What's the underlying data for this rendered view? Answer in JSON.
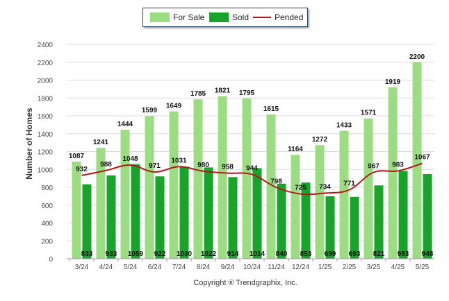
{
  "legend": {
    "for_sale": "For Sale",
    "sold": "Sold",
    "pended": "Pended"
  },
  "ylabel": "Number of Homes",
  "copyright": "Copyright ® Trendgraphix, Inc.",
  "colors": {
    "for_sale": "#9cdd84",
    "sold": "#18a32a",
    "pended": "#b01818",
    "grid": "#dddddd"
  },
  "chart_data": {
    "type": "bar",
    "categories": [
      "3/24",
      "4/24",
      "5/24",
      "6/24",
      "7/24",
      "8/24",
      "9/24",
      "10/24",
      "11/24",
      "12/24",
      "1/25",
      "2/25",
      "3/25",
      "4/25",
      "5/25"
    ],
    "series": [
      {
        "name": "For Sale",
        "type": "bar",
        "values": [
          1087,
          1241,
          1444,
          1599,
          1649,
          1785,
          1821,
          1795,
          1615,
          1164,
          1272,
          1433,
          1571,
          1919,
          2200
        ]
      },
      {
        "name": "Sold",
        "type": "bar",
        "values": [
          833,
          933,
          1059,
          922,
          1030,
          1022,
          914,
          1014,
          840,
          853,
          699,
          693,
          821,
          983,
          948
        ]
      },
      {
        "name": "Pended",
        "type": "line",
        "values": [
          932,
          988,
          1048,
          971,
          1031,
          980,
          958,
          944,
          798,
          725,
          734,
          771,
          967,
          983,
          1067
        ]
      }
    ],
    "yticks": [
      0,
      200,
      400,
      600,
      800,
      1000,
      1200,
      1400,
      1600,
      1800,
      2000,
      2200,
      2400
    ],
    "ylim": [
      0,
      2400
    ],
    "ylabel": "Number of Homes",
    "xlabel": "",
    "grid": true,
    "legend_position": "top"
  }
}
